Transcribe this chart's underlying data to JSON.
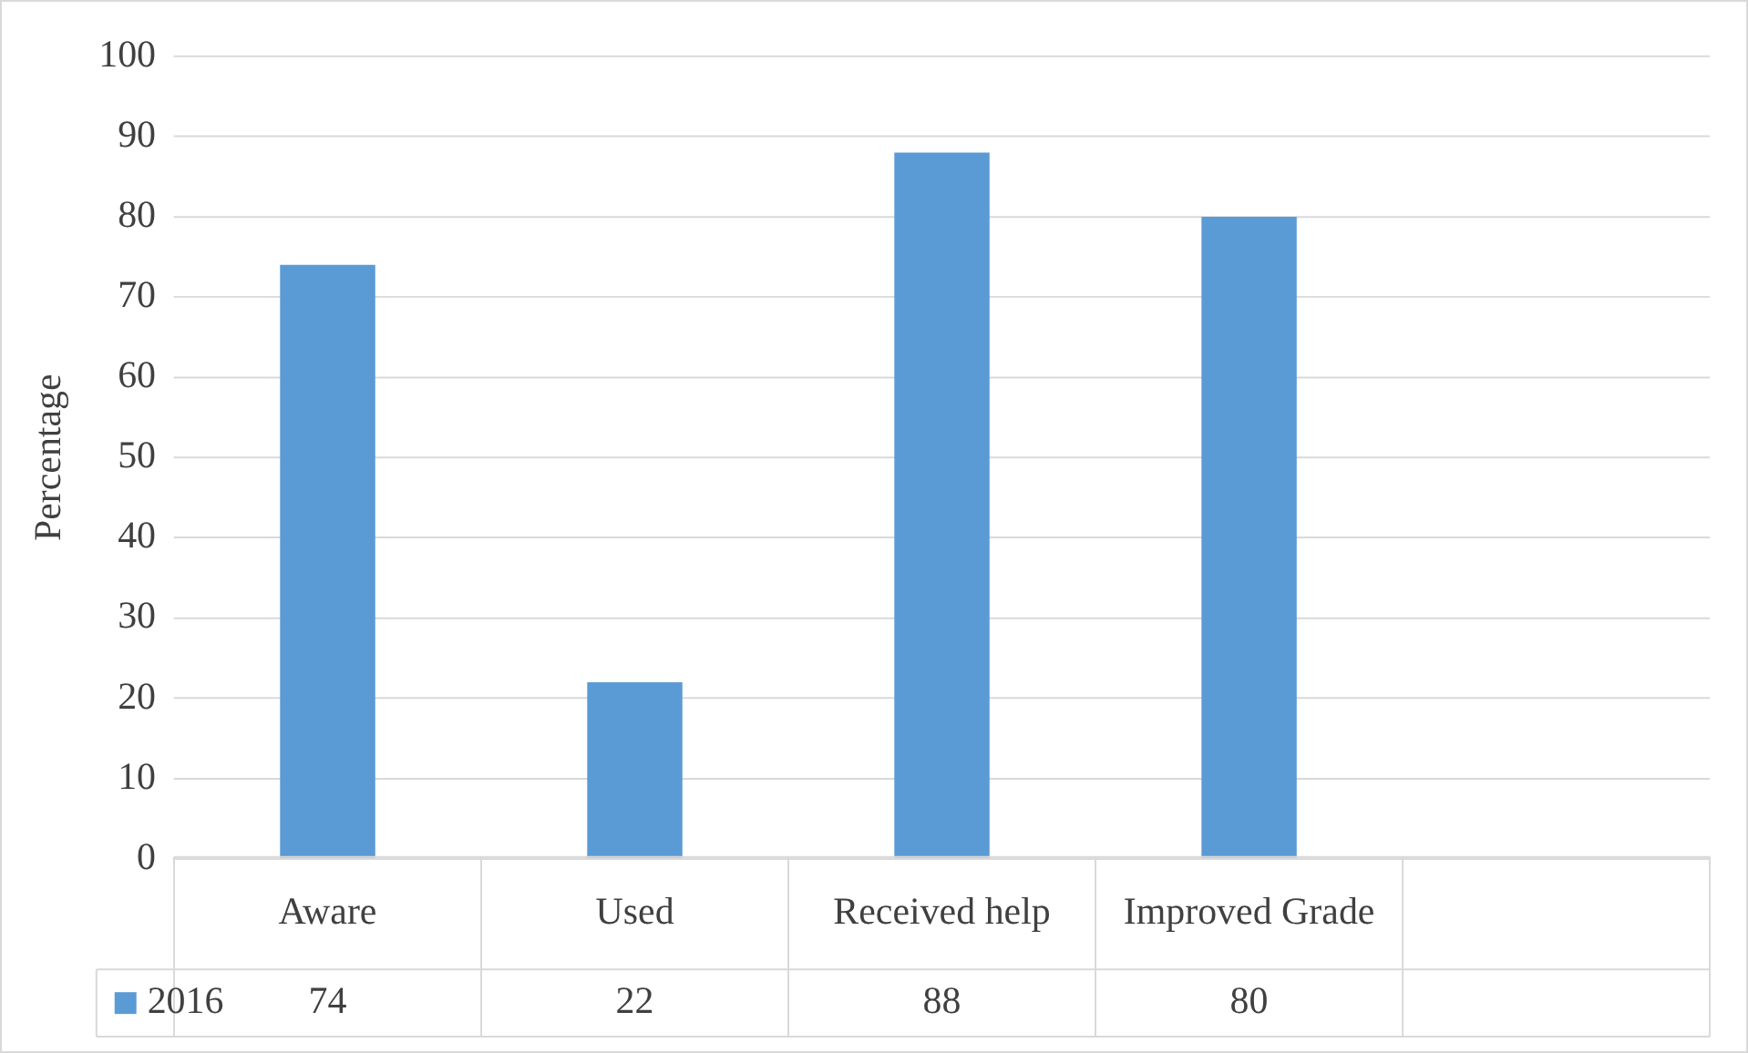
{
  "chart_data": {
    "type": "bar",
    "ylabel": "Percentage",
    "categories": [
      "Aware",
      "Used",
      "Received help",
      "Improved Grade",
      null
    ],
    "series": [
      {
        "name": "2016",
        "color": "#5b9bd5",
        "values": [
          74,
          22,
          88,
          80,
          null
        ]
      }
    ],
    "ylim": [
      0,
      100
    ],
    "yticks": [
      0,
      10,
      20,
      30,
      40,
      50,
      60,
      70,
      80,
      90,
      100
    ],
    "grid": "y",
    "legend": "bottom",
    "data_labels": true
  }
}
